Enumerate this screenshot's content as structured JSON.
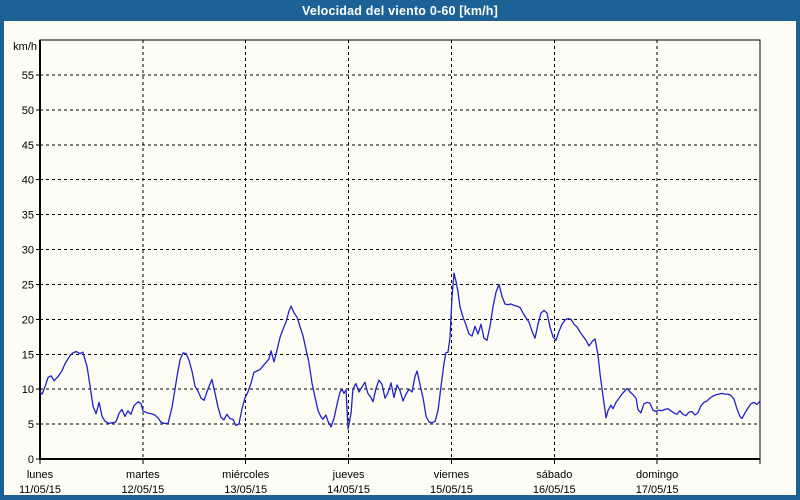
{
  "window": {
    "title": "Velocidad del viento 0-60 [km/h]"
  },
  "colors": {
    "frame_blue": "#1d6296",
    "background": "#fdfdf6",
    "line_blue": "#2121c8",
    "grid_black": "#000000",
    "title_text": "#ffffff",
    "label_text": "#000000"
  },
  "chart_data": {
    "type": "line",
    "title": "Velocidad del viento 0-60 [km/h]",
    "ylabel": "km/h",
    "ylim": [
      0,
      60
    ],
    "ytick_step": 5,
    "ytick_labels": [
      "0",
      "5",
      "10",
      "15",
      "20",
      "25",
      "30",
      "35",
      "40",
      "45",
      "50",
      "55"
    ],
    "grid": "dashed",
    "legend": "none",
    "x_days": [
      {
        "weekday": "lunes",
        "date": "11/05/15"
      },
      {
        "weekday": "martes",
        "date": "12/05/15"
      },
      {
        "weekday": "miércoles",
        "date": "13/05/15"
      },
      {
        "weekday": "jueves",
        "date": "14/05/15"
      },
      {
        "weekday": "viernes",
        "date": "15/05/15"
      },
      {
        "weekday": "sábado",
        "date": "16/05/15"
      },
      {
        "weekday": "domingo",
        "date": "17/05/15"
      }
    ],
    "series": [
      {
        "name": "velocidad_viento_kmh",
        "x_unit": "hours_from_start_of_week",
        "points": [
          [
            0,
            9.6
          ],
          [
            0.5,
            9.3
          ],
          [
            1.2,
            10.4
          ],
          [
            1.9,
            11.7
          ],
          [
            2.6,
            11.9
          ],
          [
            3.3,
            11.2
          ],
          [
            4.2,
            11.8
          ],
          [
            5.1,
            12.6
          ],
          [
            5.8,
            13.6
          ],
          [
            7,
            14.8
          ],
          [
            7.7,
            15.2
          ],
          [
            8.4,
            15.4
          ],
          [
            9.3,
            15.1
          ],
          [
            10,
            15.3
          ],
          [
            11,
            13.2
          ],
          [
            11.7,
            10.4
          ],
          [
            12.4,
            7.5
          ],
          [
            13.1,
            6.5
          ],
          [
            13.8,
            8.1
          ],
          [
            14.5,
            6.1
          ],
          [
            15.2,
            5.4
          ],
          [
            16.1,
            5.1
          ],
          [
            17,
            5.2
          ],
          [
            17.7,
            5.3
          ],
          [
            18.4,
            6.5
          ],
          [
            19.1,
            7.1
          ],
          [
            19.8,
            6.1
          ],
          [
            20.5,
            6.9
          ],
          [
            21.2,
            6.4
          ],
          [
            21.9,
            7.6
          ],
          [
            22.9,
            8.2
          ],
          [
            23.6,
            7.9
          ],
          [
            24,
            6.9
          ],
          [
            25,
            6.6
          ],
          [
            25.9,
            6.5
          ],
          [
            26.8,
            6.3
          ],
          [
            27.5,
            5.9
          ],
          [
            28.2,
            5.3
          ],
          [
            28.9,
            5.1
          ],
          [
            29.9,
            5.1
          ],
          [
            30.8,
            7.4
          ],
          [
            31.5,
            10
          ],
          [
            32,
            11.9
          ],
          [
            32.7,
            14.2
          ],
          [
            33.4,
            15.2
          ],
          [
            34.1,
            15.1
          ],
          [
            34.8,
            14.1
          ],
          [
            35.5,
            12.5
          ],
          [
            36.2,
            10.4
          ],
          [
            36.9,
            9.7
          ],
          [
            37.6,
            8.7
          ],
          [
            38.3,
            8.4
          ],
          [
            39,
            9.7
          ],
          [
            40.1,
            11.4
          ],
          [
            40.8,
            9.5
          ],
          [
            41.5,
            7.5
          ],
          [
            42.2,
            6
          ],
          [
            42.9,
            5.6
          ],
          [
            43.6,
            6.4
          ],
          [
            44.3,
            5.8
          ],
          [
            45,
            5.7
          ],
          [
            45.7,
            4.8
          ],
          [
            46.4,
            5
          ],
          [
            47.1,
            7.1
          ],
          [
            47.8,
            8.7
          ],
          [
            48.5,
            9.6
          ],
          [
            49.2,
            10.8
          ],
          [
            49.9,
            12.4
          ],
          [
            50.6,
            12.6
          ],
          [
            51.3,
            12.8
          ],
          [
            52,
            13.3
          ],
          [
            52.7,
            13.8
          ],
          [
            53.4,
            14.3
          ],
          [
            53.9,
            15.5
          ],
          [
            54.6,
            13.9
          ],
          [
            55.3,
            15.6
          ],
          [
            56,
            17.4
          ],
          [
            56.7,
            18.6
          ],
          [
            57.4,
            19.6
          ],
          [
            58.1,
            21.2
          ],
          [
            58.6,
            21.9
          ],
          [
            59.3,
            20.9
          ],
          [
            60,
            20.3
          ],
          [
            60.7,
            18.9
          ],
          [
            61.4,
            17.6
          ],
          [
            62.1,
            15.6
          ],
          [
            62.7,
            14
          ],
          [
            63.5,
            10.8
          ],
          [
            64.2,
            8.8
          ],
          [
            64.9,
            6.9
          ],
          [
            65.6,
            6
          ],
          [
            66,
            5.7
          ],
          [
            66.7,
            6.3
          ],
          [
            67.2,
            5.4
          ],
          [
            67.9,
            4.6
          ],
          [
            68.6,
            5.8
          ],
          [
            69.3,
            7.8
          ],
          [
            70,
            9.6
          ],
          [
            70.5,
            10
          ],
          [
            70.9,
            9.4
          ],
          [
            71.4,
            9.9
          ],
          [
            71.9,
            4.3
          ],
          [
            72.6,
            6.6
          ],
          [
            73,
            10
          ],
          [
            73.7,
            10.8
          ],
          [
            74.4,
            9.6
          ],
          [
            75.1,
            10.3
          ],
          [
            75.8,
            11
          ],
          [
            76.5,
            9.4
          ],
          [
            77.2,
            8.8
          ],
          [
            77.7,
            8.2
          ],
          [
            78.4,
            10.1
          ],
          [
            79.1,
            11.3
          ],
          [
            79.8,
            10.7
          ],
          [
            80.5,
            8.7
          ],
          [
            81.2,
            9.5
          ],
          [
            81.9,
            10.9
          ],
          [
            82.6,
            8.8
          ],
          [
            83.3,
            10.6
          ],
          [
            84,
            9.8
          ],
          [
            84.7,
            8.3
          ],
          [
            85.4,
            9.3
          ],
          [
            86.1,
            10
          ],
          [
            86.8,
            9.6
          ],
          [
            87.5,
            11.8
          ],
          [
            88,
            12.6
          ],
          [
            88.7,
            10.6
          ],
          [
            89.4,
            8.7
          ],
          [
            90.1,
            6.1
          ],
          [
            90.8,
            5.3
          ],
          [
            91.5,
            5.2
          ],
          [
            92.2,
            5.4
          ],
          [
            92.9,
            7
          ],
          [
            93.6,
            10.5
          ],
          [
            94.3,
            13.8
          ],
          [
            94.7,
            15.2
          ],
          [
            95.2,
            15.3
          ],
          [
            95.7,
            17.5
          ],
          [
            96.1,
            23
          ],
          [
            96.6,
            26.6
          ],
          [
            97.1,
            25.4
          ],
          [
            97.5,
            24
          ],
          [
            98,
            21.8
          ],
          [
            98.7,
            20.3
          ],
          [
            99.4,
            19.2
          ],
          [
            100.1,
            17.9
          ],
          [
            100.8,
            17.6
          ],
          [
            101.5,
            19
          ],
          [
            102.2,
            17.9
          ],
          [
            102.9,
            19.3
          ],
          [
            103.6,
            17.3
          ],
          [
            104.3,
            17
          ],
          [
            105,
            19
          ],
          [
            105.7,
            21.8
          ],
          [
            106.4,
            23.9
          ],
          [
            107.1,
            25
          ],
          [
            107.8,
            23.3
          ],
          [
            108.5,
            22.2
          ],
          [
            109.2,
            22.1
          ],
          [
            109.9,
            22.2
          ],
          [
            110.6,
            22
          ],
          [
            111.3,
            21.9
          ],
          [
            112,
            21.7
          ],
          [
            112.7,
            20.9
          ],
          [
            113.4,
            20.2
          ],
          [
            114.1,
            19.6
          ],
          [
            114.8,
            18.3
          ],
          [
            115.5,
            17.3
          ],
          [
            116.2,
            19.3
          ],
          [
            116.9,
            20.9
          ],
          [
            117.6,
            21.3
          ],
          [
            118.3,
            20.9
          ],
          [
            119,
            18.9
          ],
          [
            119.7,
            17.5
          ],
          [
            120.4,
            17
          ],
          [
            121.1,
            18.3
          ],
          [
            121.8,
            19.3
          ],
          [
            122.5,
            19.9
          ],
          [
            123.2,
            20.1
          ],
          [
            123.9,
            20
          ],
          [
            124.6,
            19.3
          ],
          [
            125.3,
            18.9
          ],
          [
            126,
            18.2
          ],
          [
            126.7,
            17.6
          ],
          [
            127.4,
            17
          ],
          [
            128.1,
            16.2
          ],
          [
            128.8,
            16.8
          ],
          [
            129.5,
            17.2
          ],
          [
            130.2,
            14.9
          ],
          [
            130.7,
            12.1
          ],
          [
            131.1,
            10.2
          ],
          [
            131.6,
            8
          ],
          [
            132.1,
            5.9
          ],
          [
            132.5,
            6.9
          ],
          [
            133.2,
            7.7
          ],
          [
            133.7,
            7.2
          ],
          [
            134.4,
            8.1
          ],
          [
            135.1,
            8.7
          ],
          [
            135.8,
            9.3
          ],
          [
            136.5,
            9.8
          ],
          [
            137,
            10.1
          ],
          [
            137.7,
            9.6
          ],
          [
            138.4,
            9.2
          ],
          [
            139.1,
            8.7
          ],
          [
            139.5,
            7.1
          ],
          [
            140.2,
            6.6
          ],
          [
            140.9,
            7.9
          ],
          [
            141.6,
            8.1
          ],
          [
            142.3,
            8
          ],
          [
            143,
            7
          ],
          [
            143.7,
            6.8
          ],
          [
            144.4,
            7
          ],
          [
            145.1,
            6.9
          ],
          [
            145.8,
            7.1
          ],
          [
            146.5,
            7.2
          ],
          [
            147.2,
            6.9
          ],
          [
            147.9,
            6.6
          ],
          [
            148.6,
            6.4
          ],
          [
            149.3,
            6.9
          ],
          [
            150,
            6.4
          ],
          [
            150.7,
            6.2
          ],
          [
            151.4,
            6.7
          ],
          [
            152.1,
            6.8
          ],
          [
            152.8,
            6.3
          ],
          [
            153.5,
            6.6
          ],
          [
            154.2,
            7.6
          ],
          [
            154.9,
            8.1
          ],
          [
            155.6,
            8.3
          ],
          [
            156.3,
            8.7
          ],
          [
            157,
            9
          ],
          [
            157.7,
            9.2
          ],
          [
            158.4,
            9.3
          ],
          [
            159.1,
            9.4
          ],
          [
            159.8,
            9.3
          ],
          [
            160.5,
            9.3
          ],
          [
            161.2,
            9.1
          ],
          [
            161.9,
            8.6
          ],
          [
            162.6,
            7.2
          ],
          [
            163.3,
            6.1
          ],
          [
            163.8,
            5.8
          ],
          [
            164.5,
            6.6
          ],
          [
            165.2,
            7.3
          ],
          [
            165.9,
            7.9
          ],
          [
            166.6,
            8.1
          ],
          [
            167.3,
            7.8
          ],
          [
            168,
            8.3
          ]
        ]
      }
    ]
  }
}
